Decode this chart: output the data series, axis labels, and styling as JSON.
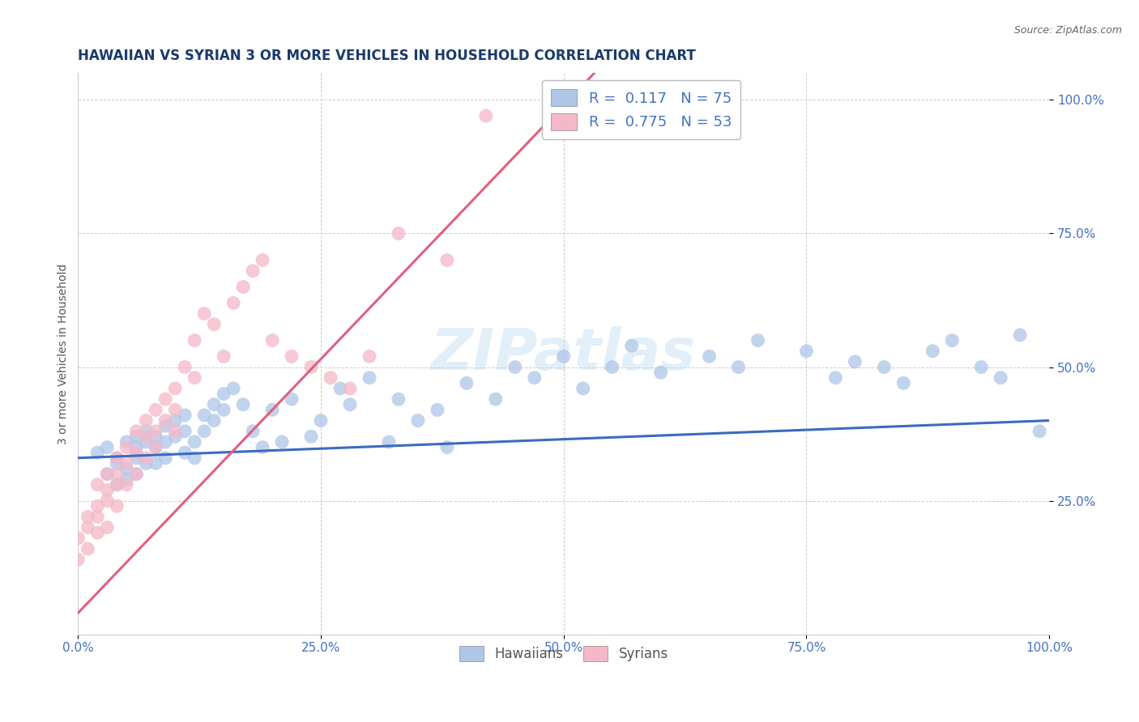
{
  "title": "HAWAIIAN VS SYRIAN 3 OR MORE VEHICLES IN HOUSEHOLD CORRELATION CHART",
  "source": "Source: ZipAtlas.com",
  "ylabel": "3 or more Vehicles in Household",
  "xlim": [
    0.0,
    1.0
  ],
  "ylim": [
    0.0,
    1.05
  ],
  "xtick_labels": [
    "0.0%",
    "25.0%",
    "50.0%",
    "75.0%",
    "100.0%"
  ],
  "xtick_vals": [
    0.0,
    0.25,
    0.5,
    0.75,
    1.0
  ],
  "ytick_labels": [
    "25.0%",
    "50.0%",
    "75.0%",
    "100.0%"
  ],
  "ytick_vals": [
    0.25,
    0.5,
    0.75,
    1.0
  ],
  "watermark": "ZIPatlas",
  "hawaiian_color": "#aec6e8",
  "syrian_color": "#f4b8c8",
  "hawaiian_line_color": "#3a6bbf",
  "syrian_line_color": "#e06080",
  "tick_color": "#4472c4",
  "hawaiian_R": 0.117,
  "hawaiian_N": 75,
  "syrian_R": 0.775,
  "syrian_N": 53,
  "hawaiian_x": [
    0.02,
    0.03,
    0.03,
    0.04,
    0.04,
    0.04,
    0.05,
    0.05,
    0.05,
    0.06,
    0.06,
    0.06,
    0.06,
    0.07,
    0.07,
    0.07,
    0.08,
    0.08,
    0.08,
    0.09,
    0.09,
    0.09,
    0.1,
    0.1,
    0.11,
    0.11,
    0.11,
    0.12,
    0.12,
    0.13,
    0.13,
    0.14,
    0.14,
    0.15,
    0.15,
    0.16,
    0.17,
    0.18,
    0.19,
    0.2,
    0.21,
    0.22,
    0.24,
    0.25,
    0.27,
    0.28,
    0.3,
    0.32,
    0.33,
    0.35,
    0.37,
    0.38,
    0.4,
    0.43,
    0.45,
    0.47,
    0.5,
    0.52,
    0.55,
    0.57,
    0.6,
    0.65,
    0.68,
    0.7,
    0.75,
    0.78,
    0.8,
    0.83,
    0.85,
    0.88,
    0.9,
    0.93,
    0.95,
    0.97,
    0.99
  ],
  "hawaiian_y": [
    0.34,
    0.35,
    0.3,
    0.33,
    0.32,
    0.28,
    0.36,
    0.31,
    0.29,
    0.37,
    0.35,
    0.33,
    0.3,
    0.38,
    0.36,
    0.32,
    0.37,
    0.35,
    0.32,
    0.39,
    0.36,
    0.33,
    0.4,
    0.37,
    0.41,
    0.38,
    0.34,
    0.36,
    0.33,
    0.41,
    0.38,
    0.43,
    0.4,
    0.45,
    0.42,
    0.46,
    0.43,
    0.38,
    0.35,
    0.42,
    0.36,
    0.44,
    0.37,
    0.4,
    0.46,
    0.43,
    0.48,
    0.36,
    0.44,
    0.4,
    0.42,
    0.35,
    0.47,
    0.44,
    0.5,
    0.48,
    0.52,
    0.46,
    0.5,
    0.54,
    0.49,
    0.52,
    0.5,
    0.55,
    0.53,
    0.48,
    0.51,
    0.5,
    0.47,
    0.53,
    0.55,
    0.5,
    0.48,
    0.56,
    0.38
  ],
  "syrian_x": [
    0.0,
    0.0,
    0.01,
    0.01,
    0.01,
    0.02,
    0.02,
    0.02,
    0.02,
    0.03,
    0.03,
    0.03,
    0.03,
    0.04,
    0.04,
    0.04,
    0.04,
    0.05,
    0.05,
    0.05,
    0.06,
    0.06,
    0.06,
    0.07,
    0.07,
    0.07,
    0.08,
    0.08,
    0.08,
    0.09,
    0.09,
    0.1,
    0.1,
    0.1,
    0.11,
    0.12,
    0.12,
    0.13,
    0.14,
    0.15,
    0.16,
    0.17,
    0.18,
    0.19,
    0.2,
    0.22,
    0.24,
    0.26,
    0.28,
    0.3,
    0.33,
    0.38,
    0.42
  ],
  "syrian_y": [
    0.18,
    0.14,
    0.22,
    0.2,
    0.16,
    0.24,
    0.28,
    0.22,
    0.19,
    0.3,
    0.27,
    0.25,
    0.2,
    0.33,
    0.3,
    0.28,
    0.24,
    0.35,
    0.32,
    0.28,
    0.38,
    0.34,
    0.3,
    0.4,
    0.37,
    0.33,
    0.42,
    0.38,
    0.35,
    0.44,
    0.4,
    0.46,
    0.42,
    0.38,
    0.5,
    0.55,
    0.48,
    0.6,
    0.58,
    0.52,
    0.62,
    0.65,
    0.68,
    0.7,
    0.55,
    0.52,
    0.5,
    0.48,
    0.46,
    0.52,
    0.75,
    0.7,
    0.97
  ],
  "title_fontsize": 12,
  "axis_fontsize": 10,
  "tick_fontsize": 11,
  "legend_fontsize": 13
}
